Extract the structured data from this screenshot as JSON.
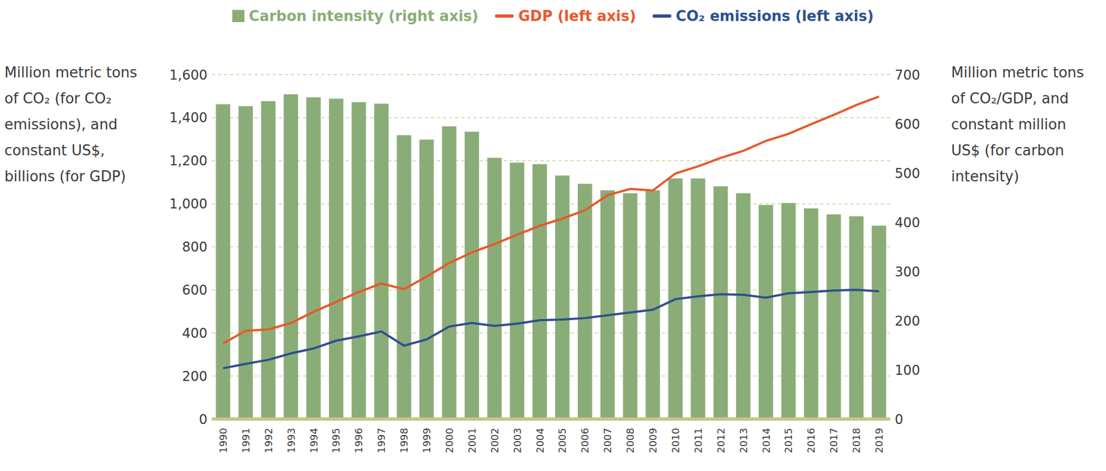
{
  "chart_data": {
    "type": "bar",
    "categories": [
      "1990",
      "1991",
      "1992",
      "1993",
      "1994",
      "1995",
      "1996",
      "1997",
      "1998",
      "1999",
      "2000",
      "2001",
      "2002",
      "2003",
      "2004",
      "2005",
      "2006",
      "2007",
      "2008",
      "2009",
      "2010",
      "2011",
      "2012",
      "2013",
      "2014",
      "2015",
      "2016",
      "2017",
      "2018",
      "2019"
    ],
    "series": [
      {
        "name": "Carbon intensity (right axis)",
        "type": "bar",
        "color": "#8aad78",
        "axis": "y2",
        "values": [
          640,
          636,
          646,
          660,
          654,
          651,
          644,
          641,
          577,
          568,
          595,
          584,
          531,
          521,
          518,
          495,
          478,
          465,
          459,
          465,
          489,
          489,
          473,
          459,
          435,
          439,
          428,
          416,
          412,
          393
        ]
      },
      {
        "name": "GDP (left axis)",
        "type": "line",
        "color": "#e8582a",
        "values": [
          351,
          410,
          416,
          446,
          498,
          544,
          590,
          630,
          603,
          662,
          725,
          774,
          813,
          856,
          898,
          931,
          970,
          1040,
          1069,
          1062,
          1141,
          1174,
          1213,
          1246,
          1292,
          1325,
          1370,
          1413,
          1459,
          1498
        ]
      },
      {
        "name": "CO₂ emissions (left axis)",
        "type": "line",
        "color": "#2f4f8f",
        "values": [
          236,
          256,
          275,
          305,
          328,
          364,
          384,
          407,
          341,
          370,
          430,
          446,
          433,
          443,
          459,
          462,
          469,
          482,
          495,
          508,
          557,
          570,
          580,
          577,
          564,
          584,
          590,
          597,
          600,
          593
        ]
      }
    ],
    "y_label": "Million metric tons of CO₂ (for CO₂ emissions), and constant US$, billions (for GDP)",
    "y2_label": "Million metric tons of CO₂/GDP, and constant million US$ (for carbon intensity)",
    "ylim": [
      0,
      1600
    ],
    "yticks": [
      0,
      200,
      400,
      600,
      800,
      {
        "value": 1000,
        "label": "1,000"
      },
      {
        "value": 1200,
        "label": "1,200"
      },
      {
        "value": 1400,
        "label": "1,400"
      },
      {
        "value": 1600,
        "label": "1,600"
      }
    ],
    "y2lim": [
      0,
      700
    ],
    "y2ticks": [
      0,
      100,
      200,
      300,
      400,
      500,
      600,
      700
    ],
    "grid": true,
    "legend": "top"
  }
}
